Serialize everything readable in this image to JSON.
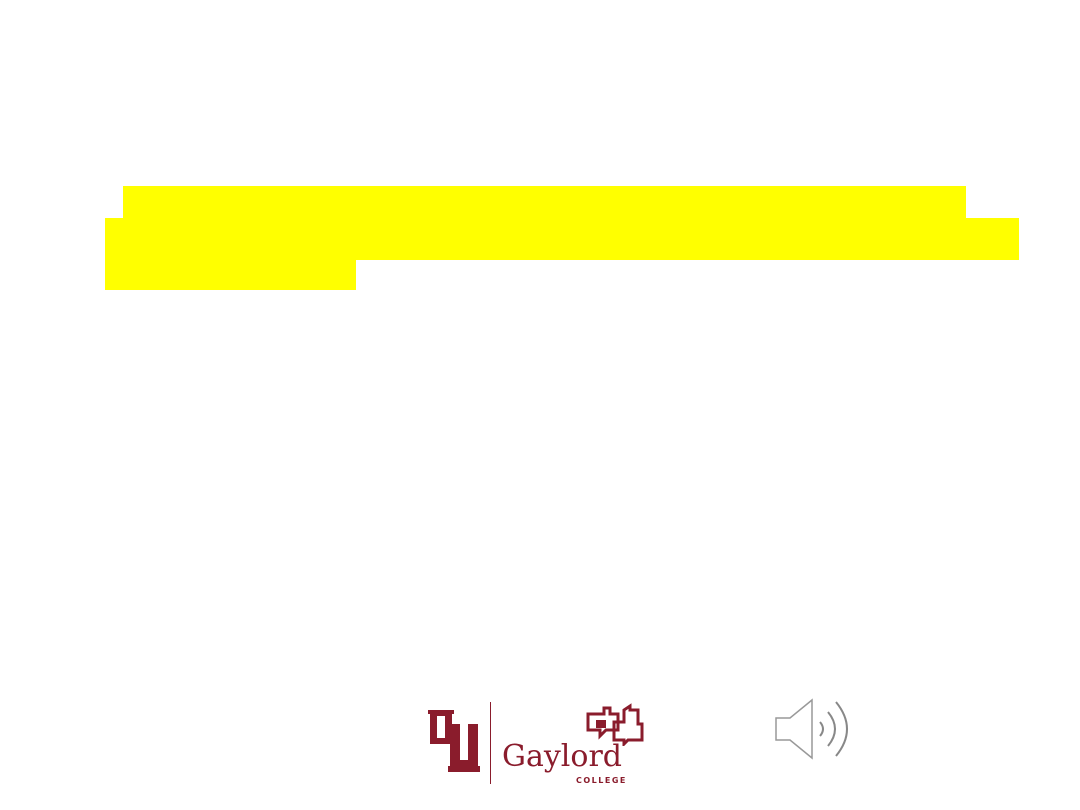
{
  "slide": {
    "logo": {
      "ou_mark_text": "OU",
      "brand_name": "Gaylord",
      "brand_sub": "COLLEGE",
      "brand_color": "#8a1c2c"
    },
    "highlight_color": "#ffff00",
    "audio_icon": "speaker-icon"
  }
}
